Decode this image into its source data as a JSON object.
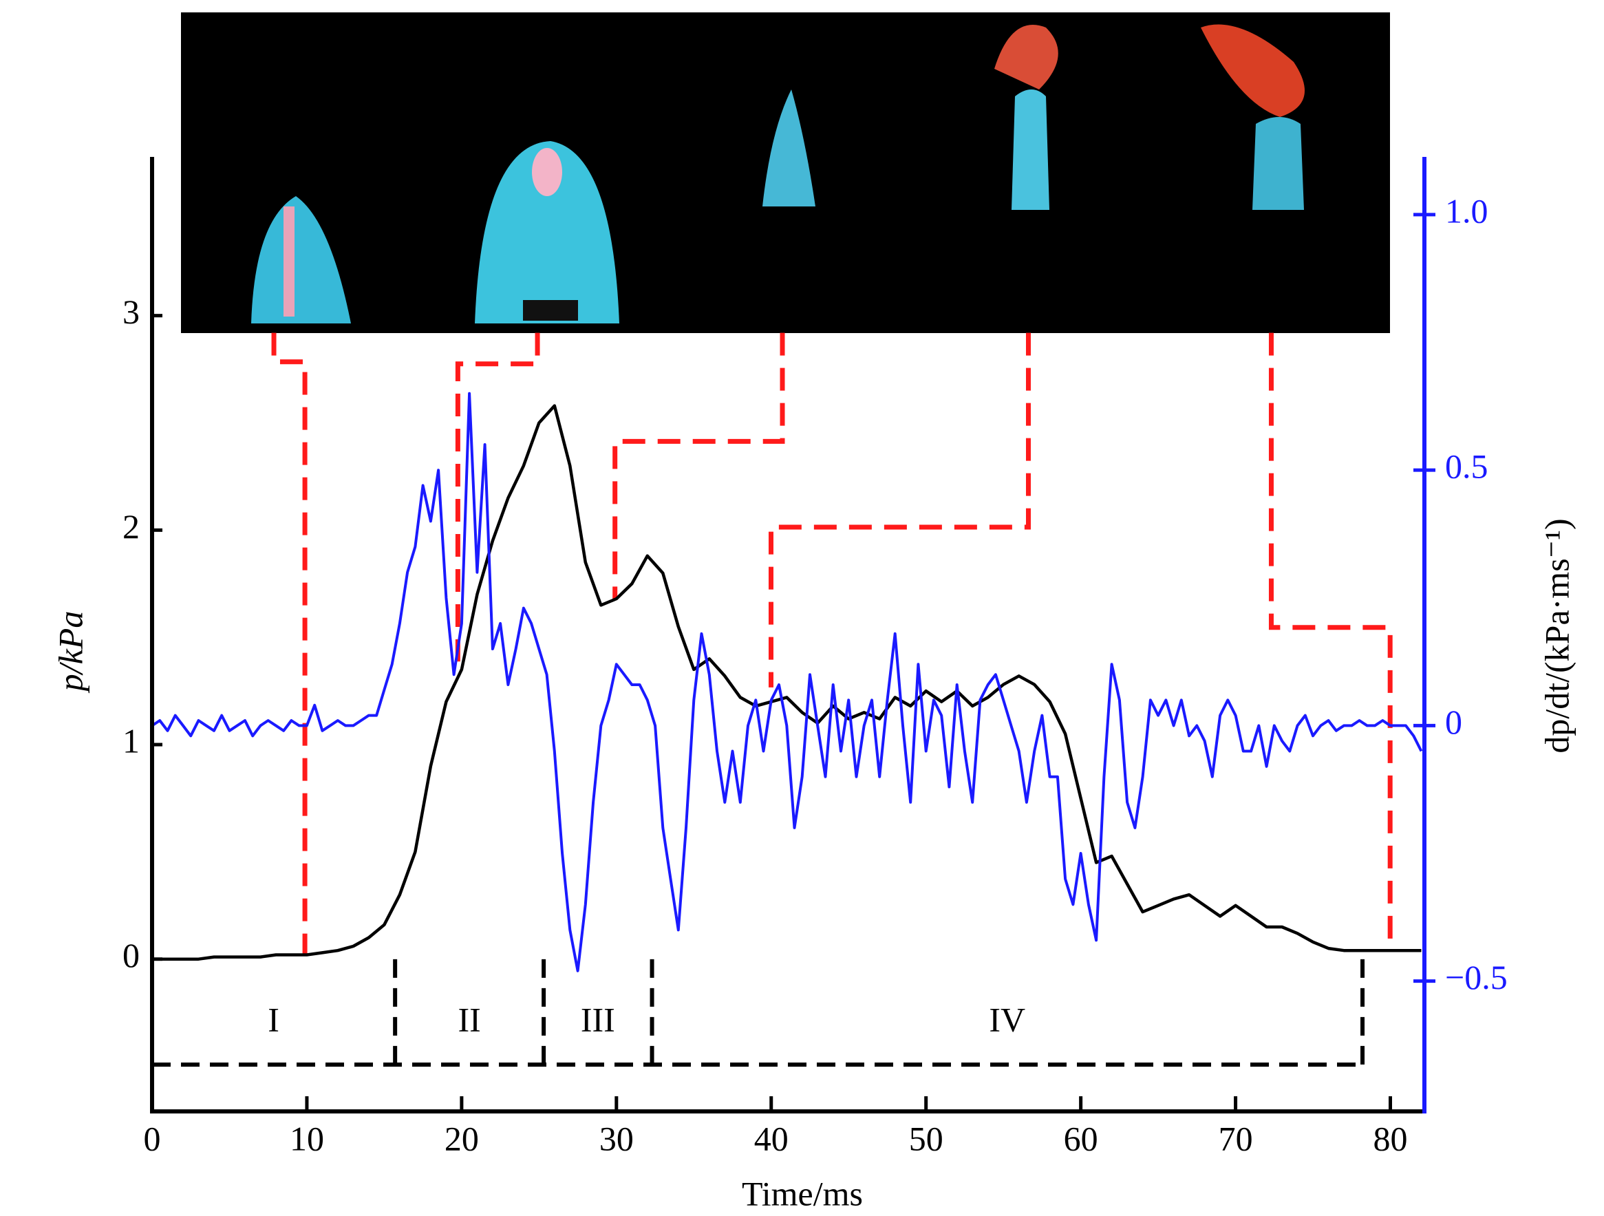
{
  "chart_data": {
    "type": "line",
    "xlabel": "Time/ms",
    "ylabel": "p/kPa",
    "y2label": "dp/dt/(kPa·ms⁻¹)",
    "xlim": [
      0,
      82.2
    ],
    "xticks": [
      0,
      10,
      20,
      30,
      40,
      50,
      60,
      70,
      80
    ],
    "ylim": [
      -0.71,
      3.74
    ],
    "yticks": [
      0,
      1,
      2,
      3
    ],
    "y2lim": [
      -0.755,
      1.113
    ],
    "y2ticks": [
      {
        "value": -0.5,
        "label": "−0.5"
      },
      0,
      0.5,
      {
        "value": 1,
        "label": "1.0"
      }
    ],
    "stages": [
      "I",
      "II",
      "III",
      "IV"
    ],
    "stage_boundaries": [
      15.7,
      25.3,
      32.3,
      78.2
    ],
    "series": [
      {
        "color": "#000000",
        "x": [
          0,
          1,
          2,
          3,
          4,
          5,
          6,
          7,
          8,
          9,
          10,
          11,
          12,
          13,
          14,
          15,
          16,
          17,
          18,
          19,
          20,
          21,
          22,
          23,
          24,
          25,
          26,
          27,
          28,
          29,
          30,
          31,
          32,
          33,
          34,
          35,
          36,
          37,
          38,
          39,
          40,
          41,
          42,
          43,
          44,
          45,
          46,
          47,
          48,
          49,
          50,
          51,
          52,
          53,
          54,
          55,
          56,
          57,
          58,
          59,
          60,
          61,
          62,
          63,
          64,
          65,
          66,
          67,
          68,
          69,
          70,
          71,
          72,
          73,
          74,
          75,
          76,
          77,
          78,
          79,
          80,
          81,
          82
        ],
        "values": [
          0,
          0,
          0,
          0,
          0.01,
          0.01,
          0.01,
          0.01,
          0.02,
          0.02,
          0.02,
          0.03,
          0.04,
          0.06,
          0.1,
          0.16,
          0.3,
          0.5,
          0.9,
          1.2,
          1.35,
          1.7,
          1.95,
          2.15,
          2.3,
          2.5,
          2.58,
          2.3,
          1.85,
          1.65,
          1.68,
          1.75,
          1.88,
          1.8,
          1.55,
          1.35,
          1.4,
          1.32,
          1.22,
          1.18,
          1.2,
          1.22,
          1.15,
          1.1,
          1.18,
          1.12,
          1.15,
          1.12,
          1.22,
          1.18,
          1.25,
          1.2,
          1.25,
          1.18,
          1.22,
          1.28,
          1.32,
          1.28,
          1.2,
          1.05,
          0.75,
          0.45,
          0.48,
          0.35,
          0.22,
          0.25,
          0.28,
          0.3,
          0.25,
          0.2,
          0.25,
          0.2,
          0.15,
          0.15,
          0.12,
          0.08,
          0.05,
          0.04,
          0.04,
          0.04,
          0.04,
          0.04,
          0.04
        ]
      },
      {
        "color": "#1a1aff",
        "axis": "y2",
        "x": [
          0,
          0.5,
          1,
          1.5,
          2,
          2.5,
          3,
          3.5,
          4,
          4.5,
          5,
          5.5,
          6,
          6.5,
          7,
          7.5,
          8,
          8.5,
          9,
          9.5,
          10,
          10.5,
          11,
          11.5,
          12,
          12.5,
          13,
          13.5,
          14,
          14.5,
          15,
          15.5,
          16,
          16.5,
          17,
          17.5,
          18,
          18.5,
          19,
          19.5,
          20,
          20.5,
          21,
          21.5,
          22,
          22.5,
          23,
          23.5,
          24,
          24.5,
          25,
          25.5,
          26,
          26.5,
          27,
          27.5,
          28,
          28.5,
          29,
          29.5,
          30,
          30.5,
          31,
          31.5,
          32,
          32.5,
          33,
          33.5,
          34,
          34.5,
          35,
          35.5,
          36,
          36.5,
          37,
          37.5,
          38,
          38.5,
          39,
          39.5,
          40,
          40.5,
          41,
          41.5,
          42,
          42.5,
          43,
          43.5,
          44,
          44.5,
          45,
          45.5,
          46,
          46.5,
          47,
          47.5,
          48,
          48.5,
          49,
          49.5,
          50,
          50.5,
          51,
          51.5,
          52,
          52.5,
          53,
          53.5,
          54,
          54.5,
          55,
          55.5,
          56,
          56.5,
          57,
          57.5,
          58,
          58.5,
          59,
          59.5,
          60,
          60.5,
          61,
          61.5,
          62,
          62.5,
          63,
          63.5,
          64,
          64.5,
          65,
          65.5,
          66,
          66.5,
          67,
          67.5,
          68,
          68.5,
          69,
          69.5,
          70,
          70.5,
          71,
          71.5,
          72,
          72.5,
          73,
          73.5,
          74,
          74.5,
          75,
          75.5,
          76,
          76.5,
          77,
          77.5,
          78,
          78.5,
          79,
          79.5,
          80,
          80.5,
          81,
          81.5,
          82
        ],
        "values": [
          0,
          0.01,
          -0.01,
          0.02,
          0,
          -0.02,
          0.01,
          0,
          -0.01,
          0.02,
          -0.01,
          0,
          0.01,
          -0.02,
          0,
          0.01,
          0,
          -0.01,
          0.01,
          0,
          0,
          0.04,
          -0.01,
          0,
          0.01,
          0,
          0,
          0.01,
          0.02,
          0.02,
          0.07,
          0.12,
          0.2,
          0.3,
          0.35,
          0.47,
          0.4,
          0.5,
          0.25,
          0.1,
          0.2,
          0.65,
          0.3,
          0.55,
          0.15,
          0.2,
          0.08,
          0.15,
          0.23,
          0.2,
          0.15,
          0.1,
          -0.05,
          -0.25,
          -0.4,
          -0.48,
          -0.35,
          -0.15,
          0,
          0.05,
          0.12,
          0.1,
          0.08,
          0.08,
          0.05,
          0,
          -0.2,
          -0.3,
          -0.4,
          -0.2,
          0.05,
          0.18,
          0.1,
          -0.05,
          -0.15,
          -0.05,
          -0.15,
          0,
          0.05,
          -0.05,
          0.05,
          0.08,
          0,
          -0.2,
          -0.1,
          0.1,
          0,
          -0.1,
          0.08,
          -0.05,
          0.05,
          -0.1,
          0,
          0.05,
          -0.1,
          0.05,
          0.18,
          0,
          -0.15,
          0.12,
          -0.05,
          0.05,
          0.02,
          -0.12,
          0.08,
          -0.05,
          -0.15,
          0.05,
          0.08,
          0.1,
          0.05,
          0,
          -0.05,
          -0.15,
          -0.05,
          0.02,
          -0.1,
          -0.1,
          -0.3,
          -0.35,
          -0.25,
          -0.35,
          -0.42,
          -0.1,
          0.12,
          0.05,
          -0.15,
          -0.2,
          -0.1,
          0.05,
          0.02,
          0.05,
          0,
          0.05,
          -0.02,
          0,
          -0.03,
          -0.1,
          0.02,
          0.05,
          0.02,
          -0.05,
          -0.05,
          0,
          -0.08,
          0,
          -0.03,
          -0.05,
          0,
          0.02,
          -0.02,
          0,
          0.01,
          -0.01,
          0,
          0,
          0.01,
          0,
          0,
          0.01,
          0,
          0,
          0,
          -0.02,
          -0.05
        ]
      }
    ]
  }
}
